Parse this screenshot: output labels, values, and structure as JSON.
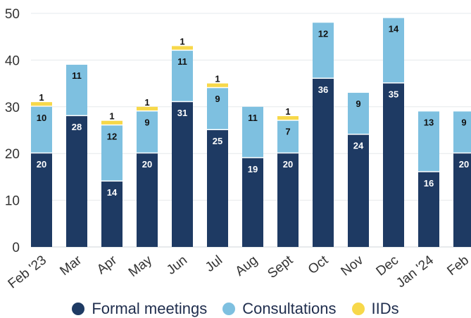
{
  "chart_data": {
    "type": "bar",
    "stacked": true,
    "categories": [
      "Feb '23",
      "Mar",
      "Apr",
      "May",
      "Jun",
      "Jul",
      "Aug",
      "Sept",
      "Oct",
      "Nov",
      "Dec",
      "Jan '24",
      "Feb"
    ],
    "series": [
      {
        "name": "Formal meetings",
        "color": "#1e3a63",
        "label_color": "#ffffff",
        "values": [
          20,
          28,
          14,
          20,
          31,
          25,
          19,
          20,
          36,
          24,
          35,
          16,
          20
        ]
      },
      {
        "name": "Consultations",
        "color": "#7ec0e0",
        "label_color": "#111111",
        "values": [
          10,
          11,
          12,
          9,
          11,
          9,
          11,
          7,
          12,
          9,
          14,
          13,
          9
        ]
      },
      {
        "name": "IIDs",
        "color": "#f7d84a",
        "label_color": "#111111",
        "values": [
          1,
          0,
          1,
          1,
          1,
          1,
          0,
          1,
          0,
          0,
          0,
          0,
          0
        ]
      }
    ],
    "ylim": [
      0,
      50
    ],
    "yticks": [
      0,
      10,
      20,
      30,
      40,
      50
    ],
    "grid": true,
    "legend_position": "bottom",
    "title": "",
    "xlabel": "",
    "ylabel": ""
  }
}
